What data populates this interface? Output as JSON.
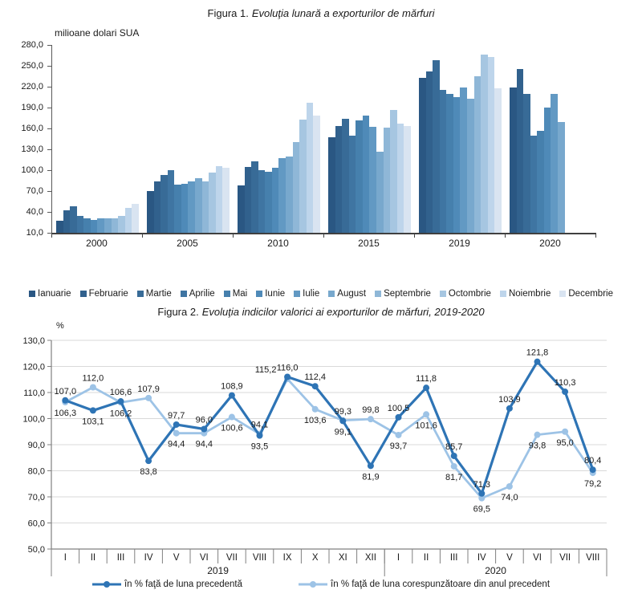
{
  "figure1": {
    "title_prefix": "Figura 1.",
    "title_text": "Evoluţia lunară a exporturilor de mărfuri",
    "unit_label": "milioane dolari SUA",
    "chart_data": {
      "type": "bar",
      "title": "Figura 1. Evoluţia lunară a exporturilor de mărfuri",
      "ylabel": "milioane dolari SUA",
      "ylim": [
        10,
        280
      ],
      "ytick_step": 30,
      "grid": false,
      "legend_position": "bottom",
      "categories": [
        "2000",
        "2005",
        "2010",
        "2015",
        "2019",
        "2020"
      ],
      "series": [
        {
          "name": "Ianuarie",
          "color": "#2A5783",
          "values": [
            27,
            70,
            78,
            147,
            233,
            219
          ]
        },
        {
          "name": "Februarie",
          "color": "#31618D",
          "values": [
            42,
            84,
            105,
            164,
            242,
            245
          ]
        },
        {
          "name": "Martie",
          "color": "#386B97",
          "values": [
            48,
            93,
            113,
            174,
            258,
            210
          ]
        },
        {
          "name": "Aprilie",
          "color": "#3F75A2",
          "values": [
            34,
            100,
            100,
            150,
            215,
            150
          ]
        },
        {
          "name": "Mai",
          "color": "#4680AD",
          "values": [
            31,
            79,
            98,
            171,
            210,
            156
          ]
        },
        {
          "name": "Iunie",
          "color": "#4F8AB8",
          "values": [
            28,
            80,
            104,
            178,
            205,
            190
          ]
        },
        {
          "name": "Iulie",
          "color": "#6299C3",
          "values": [
            31,
            84,
            117,
            162,
            219,
            210
          ]
        },
        {
          "name": "August",
          "color": "#78A8CD",
          "values": [
            31,
            88,
            120,
            127,
            203,
            169
          ]
        },
        {
          "name": "Septembrie",
          "color": "#8FB7D7",
          "values": [
            31,
            84,
            140,
            161,
            235,
            null
          ]
        },
        {
          "name": "Octombrie",
          "color": "#A6C6E1",
          "values": [
            34,
            97,
            173,
            186,
            266,
            null
          ]
        },
        {
          "name": "Noiembrie",
          "color": "#BED5EB",
          "values": [
            46,
            106,
            197,
            167,
            263,
            null
          ]
        },
        {
          "name": "Decembrie",
          "color": "#D9E4F1",
          "values": [
            51,
            104,
            178,
            163,
            218,
            null
          ]
        }
      ]
    }
  },
  "figure2": {
    "title_prefix": "Figura 2.",
    "title_text": "Evoluţia indicilor valorici ai exporturilor de mărfuri, 2019-2020",
    "unit_label": "%",
    "chart_data": {
      "type": "line",
      "title": "Figura 2. Evoluţia indicilor valorici ai exporturilor de mărfuri, 2019-2020",
      "ylabel": "%",
      "ylim": [
        50,
        130
      ],
      "ytick_step": 10,
      "grid": true,
      "legend_position": "bottom",
      "x_months": [
        "I",
        "II",
        "III",
        "IV",
        "V",
        "VI",
        "VII",
        "VIII",
        "IX",
        "X",
        "XI",
        "XII",
        "I",
        "II",
        "III",
        "IV",
        "V",
        "VI",
        "VII",
        "VIII"
      ],
      "year_groups": [
        {
          "label": "2019",
          "span": 12
        },
        {
          "label": "2020",
          "span": 8
        }
      ],
      "series": [
        {
          "name": "în % faţă de luna precedentă",
          "color": "#2E74B5",
          "values": [
            107.0,
            103.1,
            106.6,
            83.8,
            97.7,
            96.0,
            108.9,
            93.5,
            116.0,
            112.4,
            99.1,
            81.9,
            100.5,
            111.8,
            85.7,
            71.3,
            103.9,
            121.8,
            110.3,
            80.4
          ]
        },
        {
          "name": "în % faţă de luna corespunzătoare din anul precedent",
          "color": "#9DC3E6",
          "values": [
            106.3,
            112.0,
            106.2,
            107.9,
            94.4,
            94.4,
            100.6,
            94.1,
            115.2,
            103.6,
            99.3,
            99.8,
            93.7,
            101.6,
            81.7,
            69.5,
            74.0,
            93.8,
            95.0,
            79.2
          ]
        }
      ]
    }
  }
}
